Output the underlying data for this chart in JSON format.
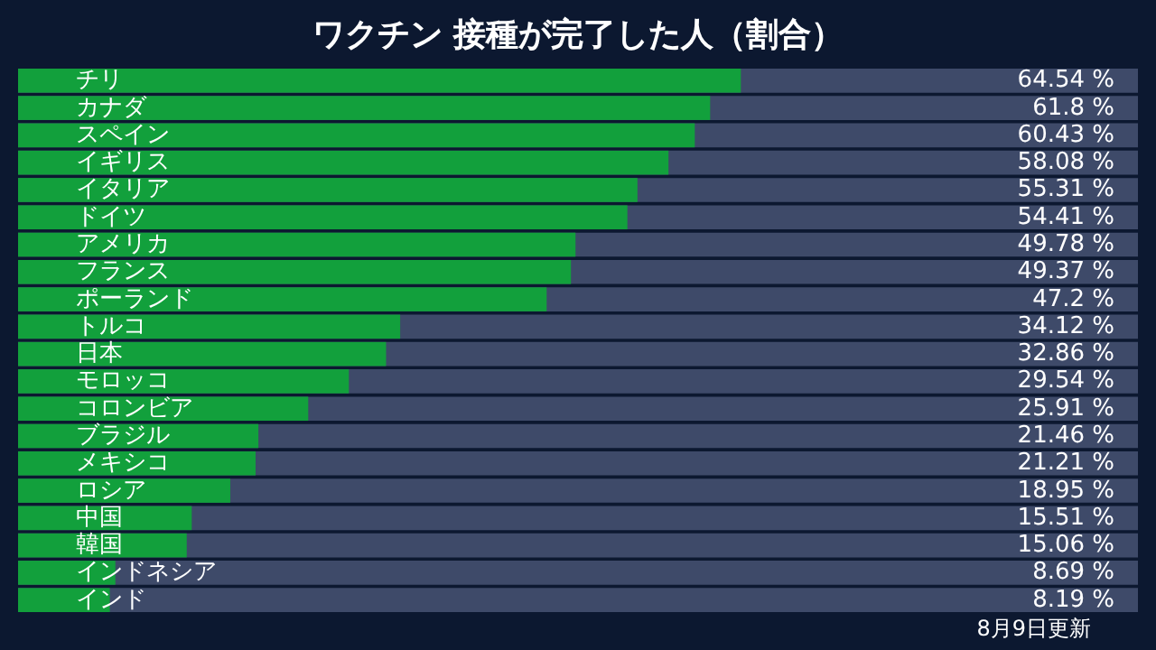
{
  "chart_data": {
    "type": "bar",
    "orientation": "horizontal",
    "title": "ワクチン 接種が完了した人（割合）",
    "categories": [
      "チリ",
      "カナダ",
      "スペイン",
      "イギリス",
      "イタリア",
      "ドイツ",
      "アメリカ",
      "フランス",
      "ポーランド",
      "トルコ",
      "日本",
      "モロッコ",
      "コロンビア",
      "ブラジル",
      "メキシコ",
      "ロシア",
      "中国",
      "韓国",
      "インドネシア",
      "インド"
    ],
    "values": [
      64.54,
      61.8,
      60.43,
      58.08,
      55.31,
      54.41,
      49.78,
      49.37,
      47.2,
      34.12,
      32.86,
      29.54,
      25.91,
      21.46,
      21.21,
      18.95,
      15.51,
      15.06,
      8.69,
      8.19
    ],
    "value_labels": [
      "64.54 %",
      "61.8 %",
      "60.43 %",
      "58.08 %",
      "55.31 %",
      "54.41 %",
      "49.78 %",
      "49.37 %",
      "47.2 %",
      "34.12 %",
      "32.86 %",
      "29.54 %",
      "25.91 %",
      "21.46 %",
      "21.21 %",
      "18.95 %",
      "15.51 %",
      "15.06 %",
      "8.69 %",
      "8.19 %"
    ],
    "color": "#12a03c",
    "xlim": [
      0,
      100
    ],
    "bands": [
      {
        "axis": "x",
        "from": 0,
        "to": 100,
        "color": "#3e4a69"
      }
    ],
    "annotations": [
      "8月9日更新"
    ]
  }
}
